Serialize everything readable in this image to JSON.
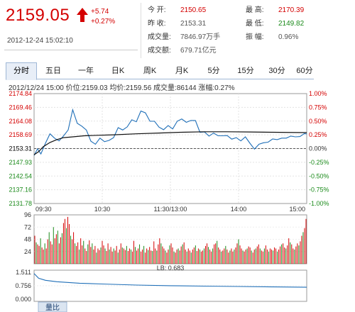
{
  "quote": {
    "price": "2159.05",
    "change": "+5.74",
    "change_pct": "+0.27%",
    "timestamp": "2012-12-24  15:02:10",
    "up_color": "#d40000",
    "down_color": "#1a8a1a"
  },
  "stats": {
    "open_label": "今    开:",
    "open_value": "2150.65",
    "prev_label": "昨    收:",
    "prev_value": "2153.31",
    "vol_label": "成交量:",
    "vol_value": "7846.97万手",
    "amt_label": "成交额:",
    "amt_value": "679.71亿元",
    "high_label": "最    高:",
    "high_value": "2170.39",
    "low_label": "最    低:",
    "low_value": "2149.82",
    "amp_label": "振    幅:",
    "amp_value": "0.96%"
  },
  "tabs": [
    "分时",
    "五日",
    "一年",
    "日K",
    "周K",
    "月K",
    "5分",
    "15分",
    "30分",
    "60分"
  ],
  "active_tab": "分时",
  "info_bar": "2012/12/24 15:00  价位:2159.03  均价:2159.56  成交量:86144  涨幅:0.27%",
  "chart_data": {
    "type": "line",
    "prev_close": 2153.31,
    "ylim": [
      2131.78,
      2174.84
    ],
    "y_ticks_left": [
      "2174.84",
      "2169.46",
      "2164.08",
      "2158.69",
      "2153.31",
      "2147.93",
      "2142.54",
      "2137.16",
      "2131.78"
    ],
    "y_ticks_right": [
      "1.00%",
      "0.75%",
      "0.50%",
      "0.25%",
      "0.00%",
      "-0.25%",
      "-0.50%",
      "-0.75%",
      "-1.00%"
    ],
    "x_ticks": [
      "09:30",
      "10:30",
      "11:30/13:00",
      "14:00",
      "15:00"
    ],
    "series": [
      {
        "name": "价位",
        "color": "#1f6fb8",
        "x": [
          0,
          3,
          6,
          10,
          14,
          18,
          22,
          26,
          30,
          34,
          38,
          42,
          46,
          50,
          54,
          58,
          62,
          66,
          70,
          74,
          78,
          82,
          86,
          90,
          94,
          98,
          102,
          106,
          110,
          114,
          118,
          122,
          126,
          130,
          134,
          138,
          142,
          146,
          150,
          154,
          158,
          162,
          166,
          170,
          174,
          178,
          182,
          186,
          190,
          194,
          198,
          202,
          206,
          210,
          214,
          218,
          222,
          226,
          230,
          234,
          238,
          240
        ],
        "values": [
          2150.6,
          2153.2,
          2151.2,
          2155.4,
          2159.1,
          2157.4,
          2156.3,
          2158.3,
          2160.6,
          2168.5,
          2163.2,
          2162.1,
          2160.6,
          2156.2,
          2155.0,
          2157.4,
          2156.0,
          2156.5,
          2157.6,
          2161.5,
          2160.6,
          2161.8,
          2164.6,
          2163.8,
          2168.0,
          2167.3,
          2164.0,
          2164.0,
          2161.7,
          2160.7,
          2162.3,
          2161.0,
          2164.0,
          2164.9,
          2163.6,
          2164.3,
          2164.3,
          2159.7,
          2159.8,
          2158.2,
          2159.4,
          2158.3,
          2158.3,
          2158.4,
          2157.0,
          2157.6,
          2156.3,
          2157.9,
          2155.4,
          2153.1,
          2155.0,
          2155.6,
          2155.8,
          2157.1,
          2156.8,
          2157.4,
          2157.4,
          2158.2,
          2157.9,
          2158.0,
          2159.2,
          2159.0
        ]
      },
      {
        "name": "均价",
        "color": "#111111",
        "x": [
          0,
          4,
          8,
          14,
          20,
          26,
          34,
          44,
          56,
          70,
          90,
          110,
          130,
          150,
          170,
          190,
          210,
          230,
          240
        ],
        "values": [
          2150.9,
          2152.1,
          2154.0,
          2155.7,
          2156.8,
          2157.6,
          2157.9,
          2158.3,
          2158.5,
          2158.7,
          2159.1,
          2159.4,
          2159.7,
          2159.9,
          2159.9,
          2159.8,
          2159.7,
          2159.6,
          2159.56
        ]
      }
    ],
    "volume": {
      "label": "量比",
      "y_ticks": [
        "96",
        "72",
        "48",
        "24"
      ],
      "ymax": 96,
      "values": [
        55,
        42,
        38,
        35,
        50,
        32,
        28,
        40,
        30,
        48,
        62,
        44,
        38,
        72,
        50,
        58,
        65,
        40,
        52,
        60,
        80,
        88,
        70,
        92,
        78,
        55,
        48,
        62,
        40,
        35,
        42,
        28,
        50,
        36,
        45,
        30,
        25,
        38,
        46,
        33,
        40,
        28,
        35,
        22,
        30,
        27,
        32,
        45,
        36,
        30,
        25,
        40,
        28,
        33,
        24,
        30,
        26,
        35,
        22,
        28,
        40,
        32,
        30,
        27,
        35,
        25,
        30,
        28,
        24,
        45,
        33,
        26,
        30,
        38,
        24,
        28,
        35,
        22,
        30,
        27,
        33,
        26,
        25,
        44,
        30,
        26,
        38,
        50,
        40,
        34,
        30,
        26,
        22,
        28,
        36,
        40,
        32,
        24,
        22,
        28,
        30,
        26,
        34,
        38,
        42,
        28,
        24,
        30,
        26,
        22,
        28,
        32,
        36,
        25,
        30,
        28,
        24,
        26,
        30,
        35,
        40,
        33,
        28,
        24,
        30,
        38,
        40,
        45,
        32,
        28,
        24,
        26,
        30,
        35,
        28,
        22,
        26,
        30,
        24,
        28,
        32,
        40,
        48,
        36,
        30,
        26,
        24,
        28,
        30,
        34,
        32,
        26,
        22,
        28,
        30,
        34,
        38,
        30,
        26,
        24,
        30,
        36,
        28,
        24,
        30,
        28,
        26,
        32,
        30,
        24,
        28,
        34,
        38,
        40,
        32,
        30,
        36,
        50,
        42,
        38,
        30,
        28,
        34,
        40,
        36,
        44,
        55,
        62,
        70,
        88
      ]
    },
    "ratio": {
      "label": "LB: 0.683",
      "y_ticks": [
        "1.511",
        "0.756",
        "0.000"
      ],
      "ymax": 1.511,
      "x": [
        0,
        4,
        10,
        20,
        40,
        60,
        90,
        120,
        150,
        180,
        210,
        240
      ],
      "values": [
        1.35,
        1.12,
        1.02,
        0.95,
        0.88,
        0.84,
        0.79,
        0.76,
        0.74,
        0.72,
        0.7,
        0.683
      ]
    }
  }
}
